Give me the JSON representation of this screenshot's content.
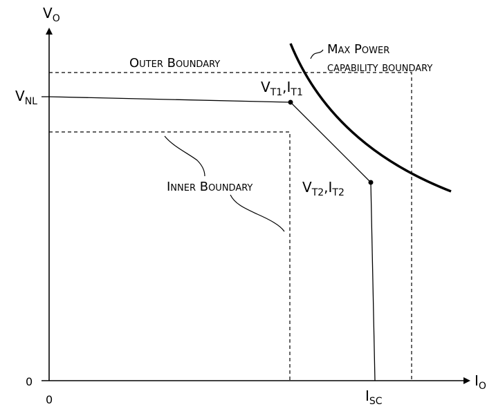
{
  "axes": {
    "y_label": {
      "main": "V",
      "sub": "O"
    },
    "x_label": {
      "main": "I",
      "sub": "O"
    },
    "origin_y": "0",
    "origin_x": "0"
  },
  "levels": {
    "vnl": {
      "main": "V",
      "sub": "NL"
    },
    "isc": {
      "main": "I",
      "sub": "SC"
    }
  },
  "points": {
    "t1": {
      "v": "V",
      "v_sub": "T1",
      "sep": ",",
      "i": "I",
      "i_sub": "T1"
    },
    "t2": {
      "v": "V",
      "v_sub": "T2",
      "sep": ",",
      "i": "I",
      "i_sub": "T2"
    }
  },
  "annotations": {
    "outer_boundary": "Outer Boundary",
    "inner_boundary": "Inner Boundary",
    "max_power_line1": "Max Power",
    "max_power_line2": "capability boundary"
  }
}
